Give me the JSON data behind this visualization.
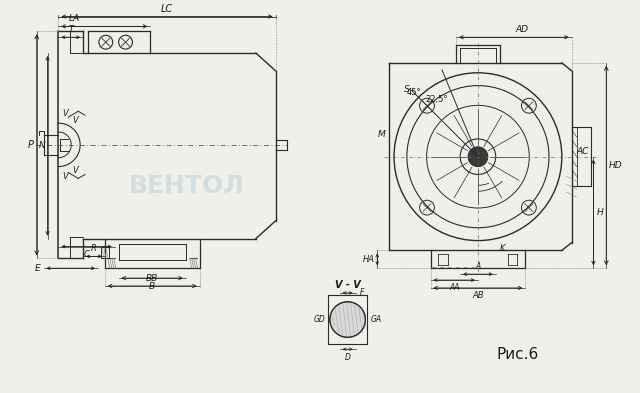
{
  "bg_color": "#f0f0eb",
  "line_color": "#2a2a2a",
  "dim_color": "#1a1a1a",
  "watermark_color": "#b8cdd8",
  "fig_width": 6.4,
  "fig_height": 3.93,
  "caption": "Рис.6",
  "angles": [
    "45°",
    "22,5°"
  ]
}
